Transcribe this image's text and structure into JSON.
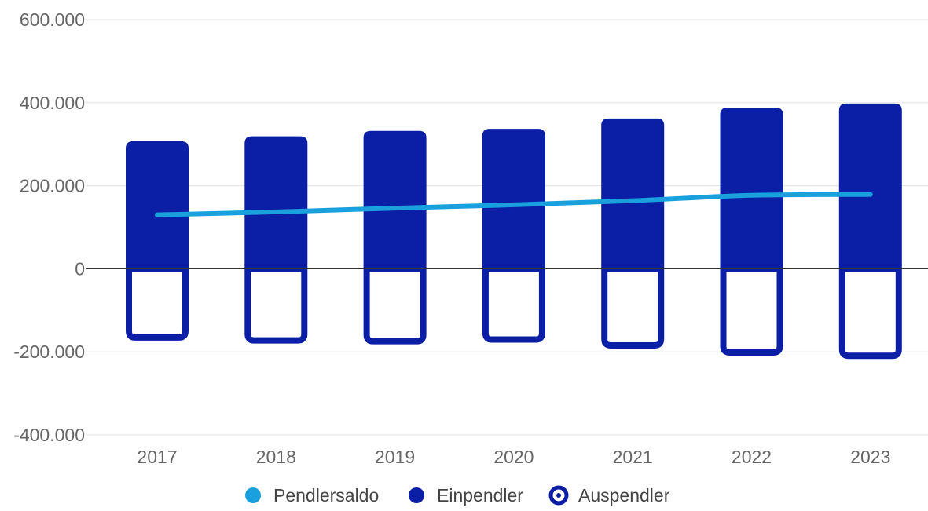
{
  "chart_data": {
    "type": "bar",
    "title": "",
    "xlabel": "",
    "ylabel": "",
    "categories": [
      "2017",
      "2018",
      "2019",
      "2020",
      "2021",
      "2022",
      "2023"
    ],
    "ylim": [
      -400000,
      600000
    ],
    "yticks": [
      600000,
      400000,
      200000,
      0,
      -200000,
      -400000
    ],
    "ytick_labels": [
      "600.000",
      "400.000",
      "200.000",
      "0",
      "-200.000",
      "-400.000"
    ],
    "grid": true,
    "legend_position": "bottom",
    "series": [
      {
        "name": "Pendlersaldo",
        "type": "line",
        "color": "#1aa0dc",
        "values": [
          130000,
          137000,
          146000,
          154000,
          164000,
          177000,
          179000
        ]
      },
      {
        "name": "Einpendler",
        "type": "bar",
        "color": "#0a1fa5",
        "values": [
          307000,
          319000,
          332000,
          337000,
          362000,
          388000,
          398000
        ]
      },
      {
        "name": "Auspendler",
        "type": "bar",
        "color": "#0a1fa5",
        "fill": "none",
        "values": [
          -173000,
          -180000,
          -182000,
          -178000,
          -192000,
          -209000,
          -217000
        ]
      }
    ],
    "legend": [
      {
        "name": "Pendlersaldo",
        "icon": "filled-dot-icon",
        "color": "#1aa0dc"
      },
      {
        "name": "Einpendler",
        "icon": "filled-dot-icon",
        "color": "#0a1fa5"
      },
      {
        "name": "Auspendler",
        "icon": "ring-dot-icon",
        "color": "#0a1fa5"
      }
    ]
  }
}
